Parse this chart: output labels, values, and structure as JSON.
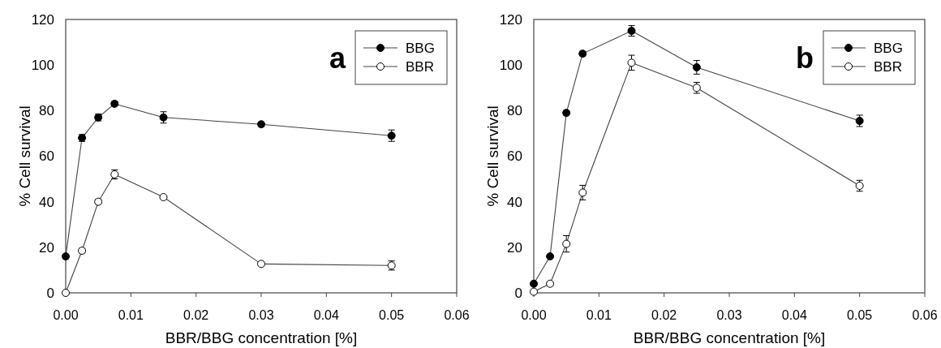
{
  "chart_data": [
    {
      "type": "line",
      "title": "a",
      "xlabel": "BBR/BBG concentration [%]",
      "ylabel": "% Cell survival",
      "x": [
        0,
        0.0025,
        0.005,
        0.0075,
        0.015,
        0.03,
        0.05
      ],
      "series": [
        {
          "name": "BBG",
          "color": "#000000",
          "values": [
            16,
            68,
            77,
            83,
            77,
            74,
            69
          ],
          "errors": [
            1,
            1.5,
            1.5,
            1,
            2.5,
            1,
            2.5
          ]
        },
        {
          "name": "BBR",
          "color": "#ffffff",
          "values": [
            0,
            18.5,
            40,
            52,
            42,
            12.7,
            12
          ],
          "errors": [
            0.5,
            1,
            1,
            2,
            0.5,
            0.5,
            2
          ]
        }
      ],
      "xlim": [
        0,
        0.06
      ],
      "xticks": [
        {
          "value": 0,
          "label": "0.00"
        },
        {
          "value": 0.01,
          "label": "0.01"
        },
        {
          "value": 0.02,
          "label": "0.02"
        },
        {
          "value": 0.03,
          "label": "0.03"
        },
        {
          "value": 0.04,
          "label": "0.04"
        },
        {
          "value": 0.05,
          "label": "0.05"
        },
        {
          "value": 0.06,
          "label": "0.06"
        }
      ],
      "ylim": [
        0,
        120
      ],
      "yticks": [
        0,
        20,
        40,
        60,
        80,
        100,
        120
      ],
      "legend": "top right",
      "marker": "circle",
      "line_style": "solid"
    },
    {
      "type": "line",
      "title": "b",
      "xlabel": "BBR/BBG concentration [%]",
      "ylabel": "% Cell survival",
      "x": [
        0,
        0.0025,
        0.005,
        0.0075,
        0.015,
        0.025,
        0.05
      ],
      "series": [
        {
          "name": "BBG",
          "color": "#000000",
          "values": [
            4,
            16,
            79,
            105,
            115,
            99,
            75.5
          ],
          "errors": [
            0.5,
            0.5,
            1,
            1,
            2.3,
            3,
            2.5
          ]
        },
        {
          "name": "BBR",
          "color": "#ffffff",
          "values": [
            0.5,
            4,
            21.5,
            44,
            101,
            90,
            47
          ],
          "errors": [
            0.5,
            0.5,
            3.6,
            3.2,
            3.3,
            2.4,
            2.4
          ]
        }
      ],
      "xlim": [
        0,
        0.06
      ],
      "xticks": [
        {
          "value": 0,
          "label": "0.00"
        },
        {
          "value": 0.01,
          "label": "0.01"
        },
        {
          "value": 0.02,
          "label": "0.02"
        },
        {
          "value": 0.03,
          "label": "0.03"
        },
        {
          "value": 0.04,
          "label": "0.04"
        },
        {
          "value": 0.05,
          "label": "0.05"
        },
        {
          "value": 0.06,
          "label": "0.06"
        }
      ],
      "ylim": [
        0,
        120
      ],
      "yticks": [
        0,
        20,
        40,
        60,
        80,
        100,
        120
      ],
      "legend": "top right",
      "marker": "circle",
      "line_style": "solid"
    }
  ]
}
